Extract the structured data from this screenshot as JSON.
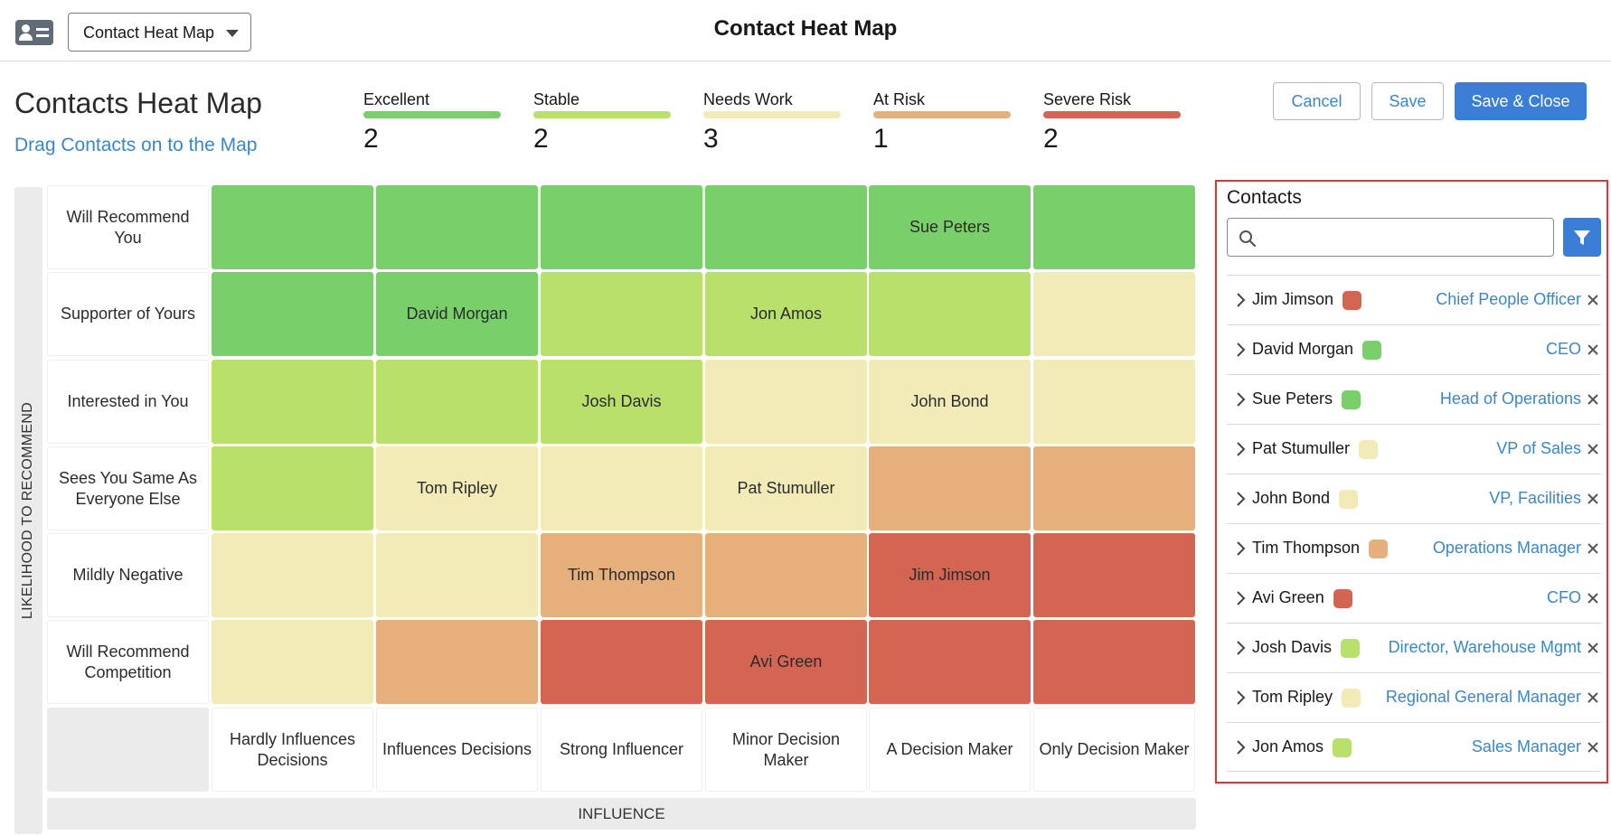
{
  "app": {
    "selector_value": "Contact Heat Map",
    "window_title": "Contact Heat Map"
  },
  "header": {
    "title": "Contacts Heat Map",
    "subtitle": "Drag Contacts on to the Map"
  },
  "legend": [
    {
      "label": "Excellent",
      "count": "2",
      "color": "#79d06b"
    },
    {
      "label": "Stable",
      "count": "2",
      "color": "#b8e06a"
    },
    {
      "label": "Needs Work",
      "count": "3",
      "color": "#f3ebb7"
    },
    {
      "label": "At Risk",
      "count": "1",
      "color": "#e6b07d"
    },
    {
      "label": "Severe Risk",
      "count": "2",
      "color": "#d46553"
    }
  ],
  "buttons": {
    "cancel": "Cancel",
    "save": "Save",
    "save_close": "Save & Close"
  },
  "heatmap": {
    "y_axis_label": "LIKELIHOOD TO RECOMMEND",
    "x_axis_label": "INFLUENCE",
    "rows": [
      "Will Recommend You",
      "Supporter of Yours",
      "Interested in You",
      "Sees You Same As Everyone Else",
      "Mildly Negative",
      "Will Recommend Competition"
    ],
    "columns": [
      "Hardly Influences Decisions",
      "Influences Decisions",
      "Strong Influencer",
      "Minor Decision Maker",
      "A Decision Maker",
      "Only Decision Maker"
    ],
    "grid": [
      [
        "excellent",
        "excellent",
        "excellent",
        "excellent",
        "excellent",
        "excellent"
      ],
      [
        "excellent",
        "excellent",
        "stable",
        "stable",
        "stable",
        "needs_work"
      ],
      [
        "stable",
        "stable",
        "stable",
        "needs_work",
        "needs_work",
        "needs_work"
      ],
      [
        "stable",
        "needs_work",
        "needs_work",
        "needs_work",
        "at_risk",
        "at_risk"
      ],
      [
        "needs_work",
        "needs_work",
        "at_risk",
        "at_risk",
        "severe_risk",
        "severe_risk"
      ],
      [
        "needs_work",
        "at_risk",
        "severe_risk",
        "severe_risk",
        "severe_risk",
        "severe_risk"
      ]
    ],
    "placements": [
      [
        "",
        "",
        "",
        "",
        "Sue Peters",
        ""
      ],
      [
        "",
        "David Morgan",
        "",
        "Jon Amos",
        "",
        ""
      ],
      [
        "",
        "",
        "Josh Davis",
        "",
        "John Bond",
        ""
      ],
      [
        "",
        "Tom Ripley",
        "",
        "Pat Stumuller",
        "",
        ""
      ],
      [
        "",
        "",
        "Tim Thompson",
        "",
        "Jim Jimson",
        ""
      ],
      [
        "",
        "",
        "",
        "Avi Green",
        "",
        ""
      ]
    ],
    "colors": {
      "excellent": "#79d06b",
      "stable": "#b8e06a",
      "needs_work": "#f3ebb7",
      "at_risk": "#e6b07d",
      "severe_risk": "#d46553"
    }
  },
  "contacts_panel": {
    "title": "Contacts",
    "search_placeholder": "",
    "contacts": [
      {
        "name": "Jim Jimson",
        "role": "Chief People Officer",
        "status": "severe_risk"
      },
      {
        "name": "David Morgan",
        "role": "CEO",
        "status": "excellent"
      },
      {
        "name": "Sue Peters",
        "role": "Head of Operations",
        "status": "excellent"
      },
      {
        "name": "Pat Stumuller",
        "role": "VP of Sales",
        "status": "needs_work"
      },
      {
        "name": "John Bond",
        "role": "VP, Facilities",
        "status": "needs_work"
      },
      {
        "name": "Tim Thompson",
        "role": "Operations Manager",
        "status": "at_risk"
      },
      {
        "name": "Avi Green",
        "role": "CFO",
        "status": "severe_risk"
      },
      {
        "name": "Josh Davis",
        "role": "Director, Warehouse Mgmt",
        "status": "stable"
      },
      {
        "name": "Tom Ripley",
        "role": "Regional General Manager",
        "status": "needs_work"
      },
      {
        "name": "Jon Amos",
        "role": "Sales Manager",
        "status": "stable"
      }
    ]
  }
}
